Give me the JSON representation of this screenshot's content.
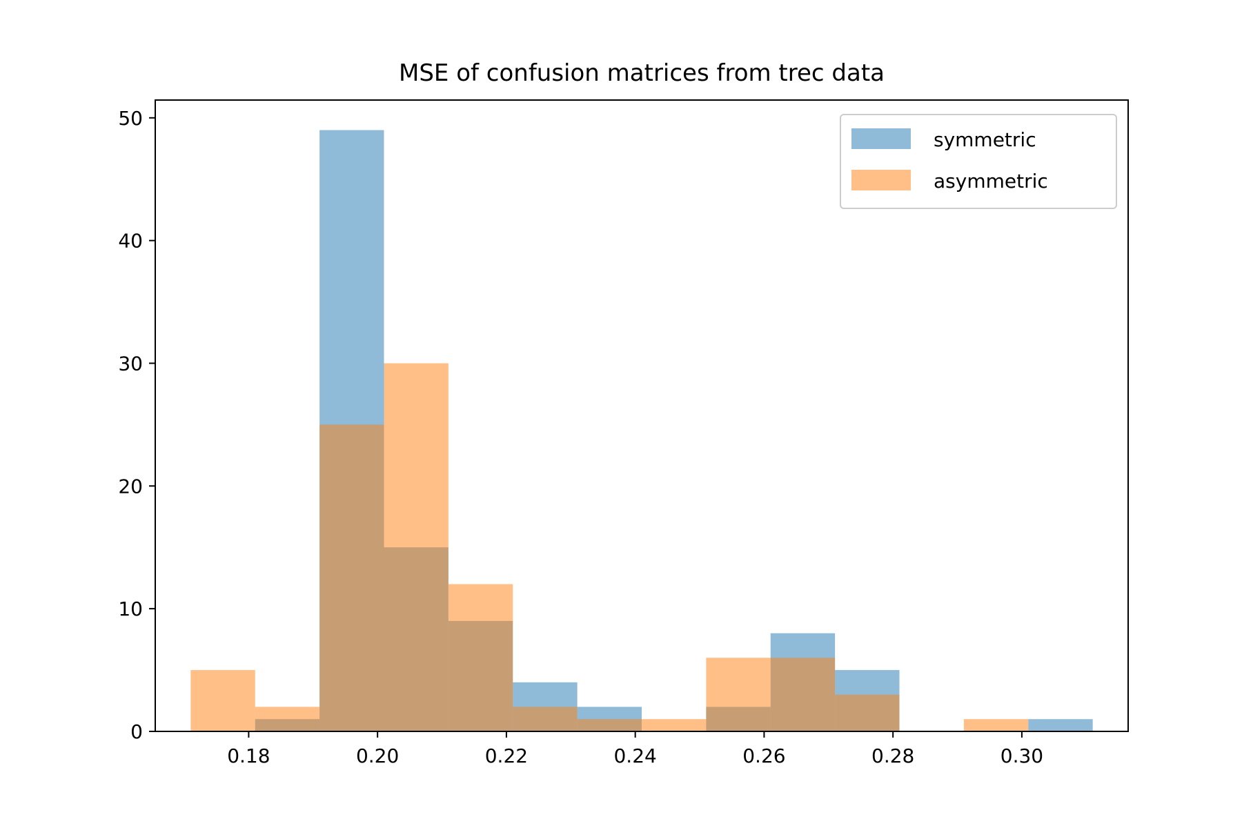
{
  "chart_data": {
    "type": "bar",
    "title": "MSE of confusion matrices from trec data",
    "xlabel": "",
    "ylabel": "",
    "xlim": [
      0.1655,
      0.3165
    ],
    "ylim": [
      0,
      51.45
    ],
    "xticks": [
      0.18,
      0.2,
      0.22,
      0.24,
      0.26,
      0.28,
      0.3
    ],
    "xtick_labels": [
      "0.18",
      "0.20",
      "0.22",
      "0.24",
      "0.26",
      "0.28",
      "0.30"
    ],
    "yticks": [
      0,
      10,
      20,
      30,
      40,
      50
    ],
    "ytick_labels": [
      "0",
      "10",
      "20",
      "30",
      "40",
      "50"
    ],
    "grid": false,
    "legend_position": "top-right",
    "bin_edges": [
      0.171,
      0.181,
      0.191,
      0.201,
      0.211,
      0.221,
      0.231,
      0.241,
      0.251,
      0.261,
      0.271,
      0.281,
      0.291,
      0.301,
      0.311
    ],
    "series": [
      {
        "name": "symmetric",
        "color": "#1f77b4",
        "opacity": 0.5,
        "values": [
          0,
          1,
          49,
          15,
          9,
          4,
          2,
          0,
          2,
          8,
          5,
          0,
          0,
          1
        ]
      },
      {
        "name": "asymmetric",
        "color": "#ff7f0e",
        "opacity": 0.5,
        "values": [
          5,
          2,
          25,
          30,
          12,
          2,
          1,
          1,
          6,
          6,
          3,
          0,
          1,
          0
        ]
      }
    ]
  }
}
